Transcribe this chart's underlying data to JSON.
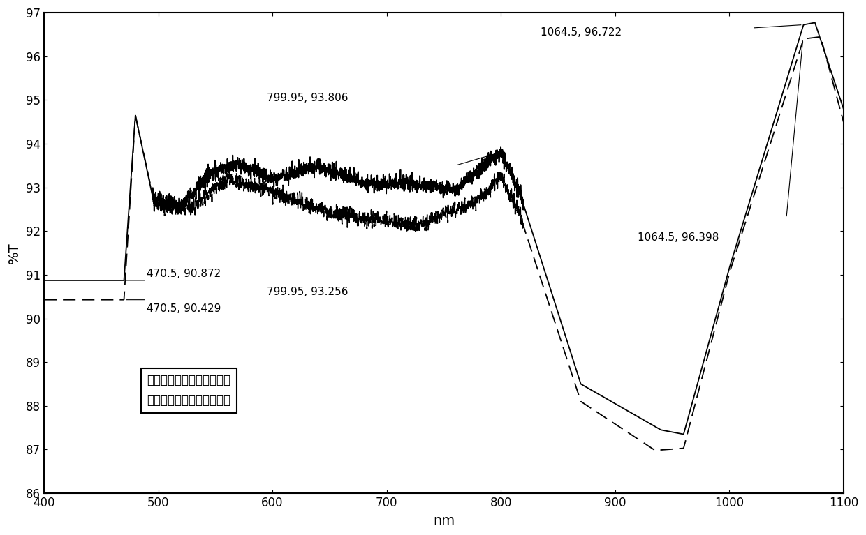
{
  "xlim": [
    400,
    1100
  ],
  "ylim": [
    86,
    97
  ],
  "xlabel": "nm",
  "ylabel": "%T",
  "yticks": [
    86,
    87,
    88,
    89,
    90,
    91,
    92,
    93,
    94,
    95,
    96,
    97
  ],
  "xticks": [
    400,
    500,
    600,
    700,
    800,
    900,
    1000,
    1100
  ],
  "legend_text_0": "实线：高低温、湿热试验前",
  "legend_text_1": "虚线：高低温、湿热试验后",
  "bg_color": "#ffffff",
  "line_color": "#000000",
  "ann_solid_470_label": "470.5, 90.872",
  "ann_solid_470_x": 470.5,
  "ann_solid_470_y": 90.872,
  "ann_dashed_470_label": "470.5, 90.429",
  "ann_dashed_470_x": 470.5,
  "ann_dashed_470_y": 90.429,
  "ann_solid_800_label": "799.95, 93.806",
  "ann_solid_800_x": 799.95,
  "ann_solid_800_y": 93.806,
  "ann_dashed_800_label": "799.95, 93.256",
  "ann_dashed_800_x": 799.95,
  "ann_dashed_800_y": 93.256,
  "ann_solid_1064_label": "1064.5, 96.722",
  "ann_solid_1064_x": 1064.5,
  "ann_solid_1064_y": 96.722,
  "ann_dashed_1064_label": "1064.5, 96.398",
  "ann_dashed_1064_x": 1064.5,
  "ann_dashed_1064_y": 96.398
}
